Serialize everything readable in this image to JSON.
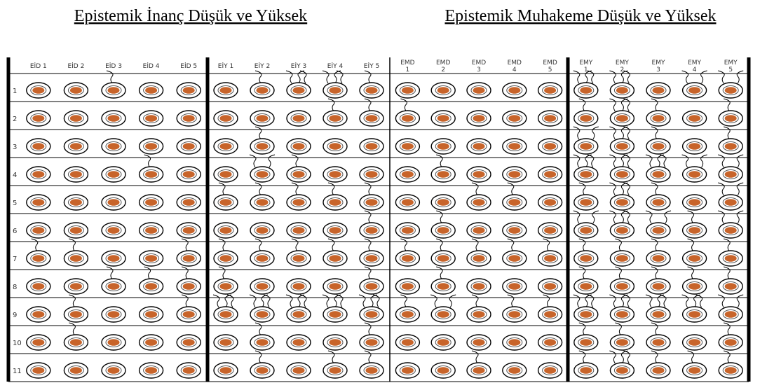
{
  "titles": [
    "Epistemik İnanç Düşük ve Yüksek",
    "Epistemik Muhakeme Düşük ve Yüksek"
  ],
  "table": {
    "headers": [
      [
        "EİD 1"
      ],
      [
        "EİD 2"
      ],
      [
        "EİD 3"
      ],
      [
        "EİD 4"
      ],
      [
        "EİD 5"
      ],
      [
        "EİY 1"
      ],
      [
        "EİY 2"
      ],
      [
        "EİY 3"
      ],
      [
        "EİY 4"
      ],
      [
        "EİY 5"
      ],
      [
        "EMD",
        "1"
      ],
      [
        "EMD",
        "2"
      ],
      [
        "EMD",
        "3"
      ],
      [
        "EMD",
        "4"
      ],
      [
        "EMD",
        "5"
      ],
      [
        "EMY",
        "1"
      ],
      [
        "EMY",
        "2"
      ],
      [
        "EMY",
        "3"
      ],
      [
        "EMY",
        "4"
      ],
      [
        "EMY",
        "5"
      ]
    ],
    "rows": [
      "1",
      "2",
      "3",
      "4",
      "5",
      "6",
      "7",
      "8",
      "9",
      "10",
      "11"
    ]
  }
}
